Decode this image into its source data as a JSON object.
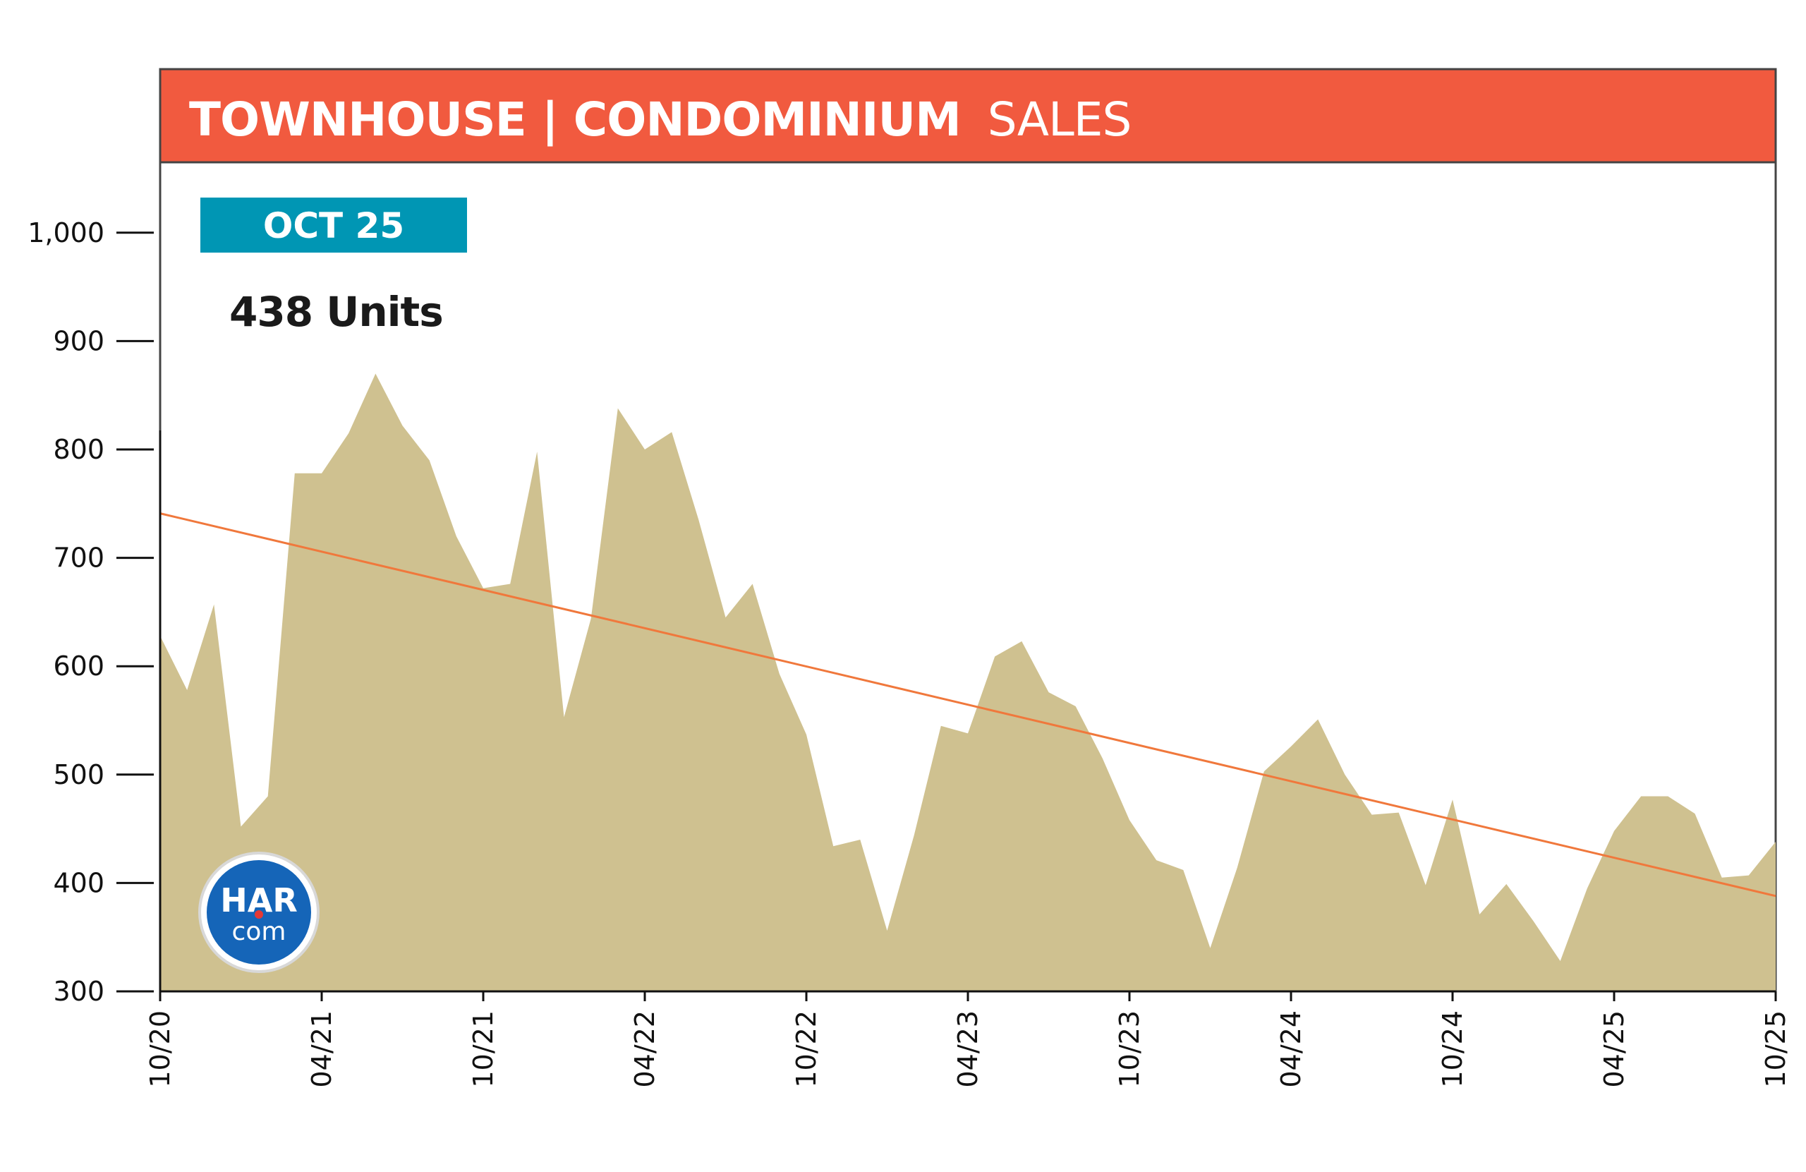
{
  "header": {
    "title_bold": "TOWNHOUSE | CONDOMINIUM",
    "title_light": "SALES",
    "color": "#f15a3f"
  },
  "callout": {
    "badge": "OCT 25",
    "badge_color": "#0096b4",
    "value_text": "438 Units"
  },
  "logo": {
    "line1": "HAR",
    "line2": "com",
    "color": "#1565b8"
  },
  "chart_data": {
    "type": "area",
    "title": "TOWNHOUSE | CONDOMINIUM SALES",
    "xlabel": "",
    "ylabel": "",
    "ylim": [
      300,
      1060
    ],
    "yticks": [
      300,
      400,
      500,
      600,
      700,
      800,
      900,
      1000
    ],
    "ytick_labels": [
      "300",
      "400",
      "500",
      "600",
      "700",
      "800",
      "900",
      "1,000"
    ],
    "xticks": [
      0,
      6,
      12,
      18,
      24,
      30,
      36,
      42,
      48,
      54,
      60
    ],
    "xtick_labels": [
      "10/20",
      "04/21",
      "10/21",
      "04/22",
      "10/22",
      "04/23",
      "10/23",
      "04/24",
      "10/24",
      "04/25",
      "10/25"
    ],
    "area_color": "#cfc190",
    "trend_color": "#f0783c",
    "grid": false,
    "series": [
      {
        "values": [
          628,
          578,
          657,
          452,
          480,
          778,
          778,
          815,
          870,
          822,
          790,
          720,
          672,
          676,
          798,
          553,
          644,
          838,
          800,
          816,
          735,
          645,
          676,
          593,
          537,
          434,
          440,
          356,
          444,
          545,
          538,
          609,
          623,
          576,
          563,
          515,
          458,
          421,
          412,
          340,
          414,
          503,
          526,
          551,
          500,
          463,
          465,
          398,
          477,
          371,
          399,
          365,
          328,
          395,
          448,
          480,
          480,
          464,
          405,
          407,
          438
        ]
      }
    ],
    "trendline": {
      "start": 741,
      "end": 388
    }
  }
}
